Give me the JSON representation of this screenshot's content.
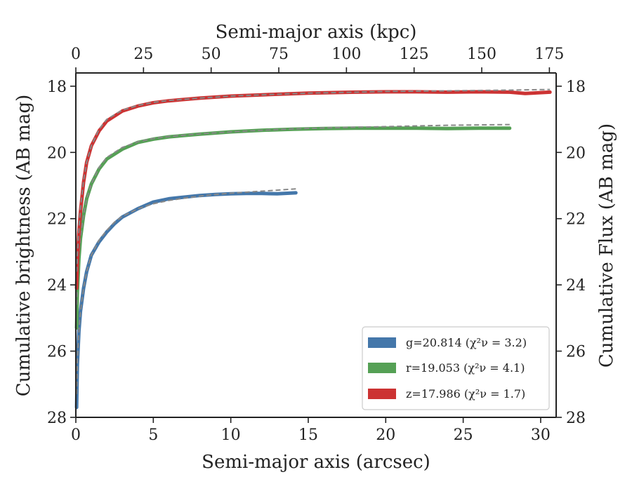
{
  "chart_data": {
    "type": "line",
    "xlabel": "Semi-major axis (arcsec)",
    "ylabel": "Cumulative brightness (AB mag)",
    "top_xlabel": "Semi-major axis (kpc)",
    "right_ylabel": "Cumulative Flux (AB mag)",
    "xlim": [
      0,
      31
    ],
    "ylim": [
      28,
      17.6
    ],
    "y_inverted": true,
    "top_xlim": [
      0,
      177.5
    ],
    "x_ticks": [
      0,
      5,
      10,
      15,
      20,
      25,
      30
    ],
    "y_ticks": [
      18,
      20,
      22,
      24,
      26,
      28
    ],
    "top_x_ticks": [
      0,
      25,
      50,
      75,
      100,
      125,
      150,
      175
    ],
    "grid": false,
    "legend_position": "lower-right",
    "legend": [
      "g=20.814 (χ²ν = 3.2)",
      "r=19.053 (χ²ν = 4.1)",
      "z=17.986 (χ²ν = 1.7)"
    ],
    "series": [
      {
        "name": "g=20.814 (χ²ν = 3.2)",
        "color": "#4477aa",
        "x": [
          0.05,
          0.1,
          0.2,
          0.3,
          0.5,
          0.7,
          1.0,
          1.5,
          2.0,
          2.5,
          3.0,
          4.0,
          5.0,
          6.0,
          7.0,
          8.0,
          9.0,
          10.0,
          11.0,
          12.0,
          13.0,
          14.2
        ],
        "y": [
          27.7,
          26.4,
          25.4,
          24.8,
          24.1,
          23.6,
          23.1,
          22.7,
          22.4,
          22.15,
          21.95,
          21.7,
          21.5,
          21.4,
          21.35,
          21.3,
          21.27,
          21.25,
          21.24,
          21.24,
          21.25,
          21.22
        ],
        "model": {
          "x": [
            0.05,
            0.1,
            0.2,
            0.3,
            0.5,
            0.7,
            1.0,
            1.5,
            2.0,
            2.5,
            3.0,
            4.0,
            5.0,
            6.0,
            7.0,
            8.0,
            9.0,
            10.0,
            11.0,
            12.0,
            13.0,
            14.2
          ],
          "y": [
            27.3,
            26.3,
            25.4,
            24.8,
            24.1,
            23.6,
            23.1,
            22.65,
            22.35,
            22.1,
            21.93,
            21.7,
            21.55,
            21.45,
            21.38,
            21.32,
            21.27,
            21.23,
            21.2,
            21.17,
            21.14,
            21.1
          ]
        }
      },
      {
        "name": "r=19.053 (χ²ν = 4.1)",
        "color": "#55a055",
        "x": [
          0.05,
          0.1,
          0.2,
          0.3,
          0.5,
          0.7,
          1.0,
          1.5,
          2.0,
          3.0,
          4.0,
          5.0,
          6.0,
          8.0,
          10.0,
          12.0,
          14.0,
          16.0,
          18.0,
          20.0,
          22.0,
          24.0,
          26.0,
          28.0
        ],
        "y": [
          25.3,
          24.2,
          23.2,
          22.6,
          21.9,
          21.4,
          20.95,
          20.5,
          20.2,
          19.9,
          19.7,
          19.6,
          19.53,
          19.45,
          19.38,
          19.33,
          19.3,
          19.28,
          19.27,
          19.27,
          19.27,
          19.28,
          19.27,
          19.27
        ],
        "model": {
          "x": [
            0.05,
            0.1,
            0.2,
            0.3,
            0.5,
            0.7,
            1.0,
            1.5,
            2.0,
            3.0,
            4.0,
            5.0,
            6.0,
            8.0,
            10.0,
            12.0,
            14.0,
            16.0,
            18.0,
            20.0,
            22.0,
            24.0,
            26.0,
            28.0
          ],
          "y": [
            24.6,
            23.9,
            23.1,
            22.55,
            21.9,
            21.4,
            20.95,
            20.45,
            20.15,
            19.85,
            19.68,
            19.58,
            19.52,
            19.44,
            19.38,
            19.33,
            19.29,
            19.26,
            19.24,
            19.22,
            19.2,
            19.18,
            19.17,
            19.16
          ]
        }
      },
      {
        "name": "z=17.986 (χ²ν = 1.7)",
        "color": "#cc3333",
        "x": [
          0.05,
          0.1,
          0.2,
          0.3,
          0.5,
          0.7,
          1.0,
          1.5,
          2.0,
          3.0,
          4.0,
          5.0,
          6.0,
          8.0,
          10.0,
          12.0,
          15.0,
          18.0,
          20.0,
          22.0,
          24.0,
          26.0,
          28.0,
          29.0,
          30.6
        ],
        "y": [
          24.1,
          23.3,
          22.4,
          21.8,
          20.9,
          20.3,
          19.8,
          19.35,
          19.05,
          18.75,
          18.6,
          18.5,
          18.44,
          18.36,
          18.3,
          18.26,
          18.21,
          18.18,
          18.17,
          18.17,
          18.18,
          18.17,
          18.18,
          18.22,
          18.18
        ],
        "model": {
          "x": [
            0.05,
            0.1,
            0.2,
            0.3,
            0.5,
            0.7,
            1.0,
            1.5,
            2.0,
            3.0,
            4.0,
            5.0,
            6.0,
            8.0,
            10.0,
            12.0,
            15.0,
            18.0,
            20.0,
            22.0,
            24.0,
            26.0,
            28.0,
            29.0,
            30.6
          ],
          "y": [
            23.6,
            23.1,
            22.3,
            21.7,
            20.85,
            20.3,
            19.8,
            19.3,
            19.0,
            18.72,
            18.58,
            18.49,
            18.43,
            18.36,
            18.3,
            18.26,
            18.21,
            18.18,
            18.16,
            18.15,
            18.14,
            18.13,
            18.12,
            18.11,
            18.1
          ]
        }
      }
    ]
  }
}
